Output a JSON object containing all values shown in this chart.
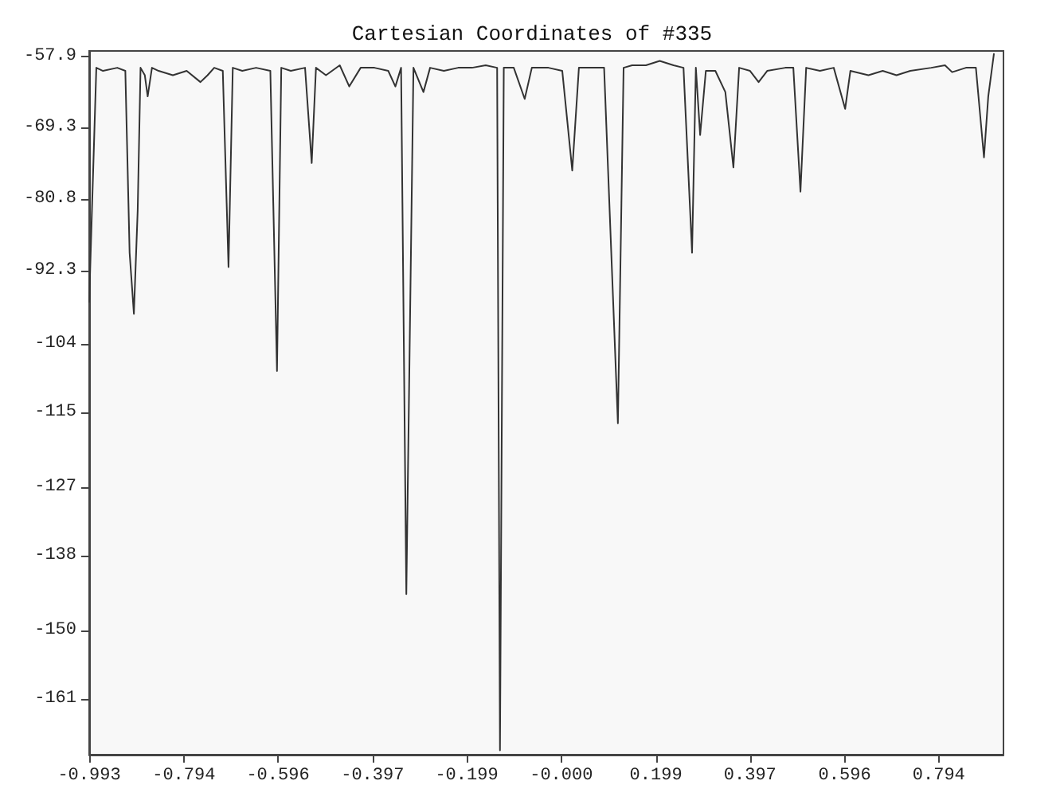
{
  "chart_data": {
    "type": "line",
    "title": "Cartesian Coordinates of #335",
    "x": [
      -0.993,
      -0.987,
      -0.978,
      -0.964,
      -0.934,
      -0.917,
      -0.908,
      -0.899,
      -0.891,
      -0.885,
      -0.876,
      -0.87,
      -0.861,
      -0.847,
      -0.817,
      -0.788,
      -0.759,
      -0.744,
      -0.73,
      -0.712,
      -0.7,
      -0.691,
      -0.671,
      -0.642,
      -0.612,
      -0.598,
      -0.589,
      -0.569,
      -0.539,
      -0.525,
      -0.516,
      -0.495,
      -0.466,
      -0.446,
      -0.422,
      -0.393,
      -0.364,
      -0.349,
      -0.337,
      -0.326,
      -0.311,
      -0.29,
      -0.276,
      -0.247,
      -0.217,
      -0.188,
      -0.159,
      -0.135,
      -0.129,
      -0.121,
      -0.1,
      -0.077,
      -0.062,
      -0.027,
      0.002,
      0.023,
      0.037,
      0.061,
      0.09,
      0.119,
      0.131,
      0.149,
      0.178,
      0.207,
      0.236,
      0.257,
      0.275,
      0.283,
      0.292,
      0.304,
      0.324,
      0.345,
      0.362,
      0.374,
      0.397,
      0.415,
      0.433,
      0.471,
      0.488,
      0.503,
      0.515,
      0.544,
      0.573,
      0.597,
      0.608,
      0.646,
      0.676,
      0.705,
      0.734,
      0.778,
      0.807,
      0.822,
      0.851,
      0.872,
      0.889,
      0.898,
      0.91
    ],
    "series": [
      {
        "color": "#333333",
        "values": [
          -97.4,
          -82.1,
          -59.7,
          -60.2,
          -59.7,
          -60.2,
          -89.4,
          -99.2,
          -82.6,
          -59.7,
          -60.9,
          -64.3,
          -59.7,
          -60.2,
          -60.9,
          -60.2,
          -62.0,
          -60.9,
          -59.7,
          -60.2,
          -91.7,
          -59.7,
          -60.2,
          -59.7,
          -60.2,
          -108.4,
          -59.7,
          -60.2,
          -59.7,
          -75.0,
          -59.7,
          -60.9,
          -59.3,
          -62.7,
          -59.7,
          -59.7,
          -60.2,
          -62.7,
          -59.7,
          -144.2,
          -59.7,
          -63.6,
          -59.7,
          -60.2,
          -59.7,
          -59.7,
          -59.3,
          -59.7,
          -169.3,
          -59.7,
          -59.7,
          -64.7,
          -59.7,
          -59.7,
          -60.2,
          -76.2,
          -59.7,
          -59.7,
          -59.7,
          -116.8,
          -59.7,
          -59.3,
          -59.3,
          -58.6,
          -59.3,
          -59.7,
          -89.4,
          -59.7,
          -70.5,
          -60.2,
          -60.2,
          -63.6,
          -75.7,
          -59.7,
          -60.2,
          -62.0,
          -60.2,
          -59.7,
          -59.7,
          -79.6,
          -59.7,
          -60.2,
          -59.7,
          -66.3,
          -60.2,
          -60.9,
          -60.2,
          -60.9,
          -60.2,
          -59.7,
          -59.3,
          -60.4,
          -59.7,
          -59.7,
          -74.1,
          -64.3,
          -57.4
        ]
      }
    ],
    "xlim": [
      -0.993,
      0.93
    ],
    "xticks": [
      -0.993,
      -0.794,
      -0.596,
      -0.397,
      -0.199,
      {
        "value": 0,
        "label": "-0.000"
      },
      0.199,
      0.397,
      0.596,
      0.794
    ],
    "ylim": [
      -170,
      -57
    ],
    "yticks": [
      -57.9,
      -69.3,
      -80.8,
      -92.3,
      -104,
      -115,
      -127,
      -138,
      -150,
      -161
    ],
    "grid": false,
    "marker": "none",
    "line_style": "solid"
  }
}
